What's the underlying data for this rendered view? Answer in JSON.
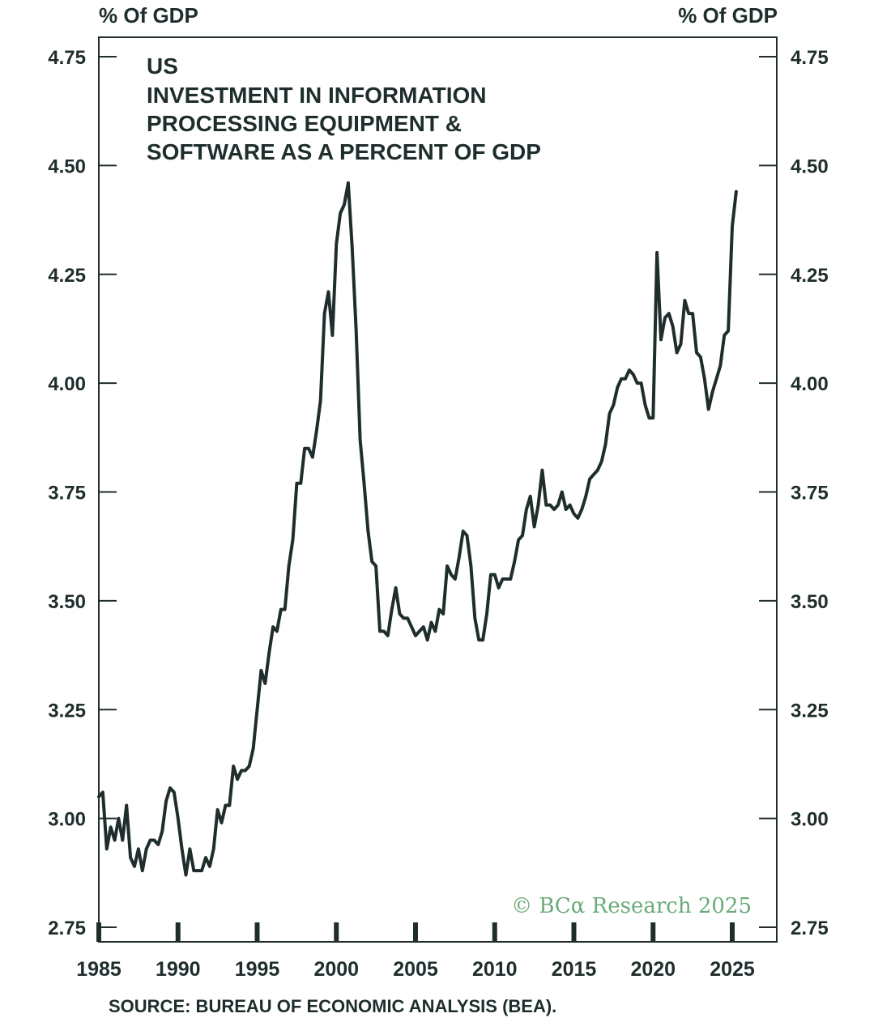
{
  "chart_data": {
    "type": "line",
    "title_lines": [
      "US",
      "INVESTMENT IN INFORMATION",
      "PROCESSING EQUIPMENT &",
      "SOFTWARE AS A PERCENT OF GDP"
    ],
    "ylabel_left": "% Of GDP",
    "ylabel_right": "% Of GDP",
    "source": "SOURCE: BUREAU OF ECONOMIC ANALYSIS (BEA).",
    "watermark": "© BCα Research 2025",
    "ylim": [
      2.75,
      4.75
    ],
    "xlim": [
      1985,
      2028
    ],
    "y_ticks": [
      2.75,
      3.0,
      3.25,
      3.5,
      3.75,
      4.0,
      4.25,
      4.5,
      4.75
    ],
    "y_tick_labels": [
      "2.75",
      "3.00",
      "3.25",
      "3.50",
      "3.75",
      "4.00",
      "4.25",
      "4.50",
      "4.75"
    ],
    "x_ticks": [
      1985,
      1990,
      1995,
      2000,
      2005,
      2010,
      2015,
      2020,
      2025
    ],
    "x_tick_labels": [
      "1985",
      "1990",
      "1995",
      "2000",
      "2005",
      "2010",
      "2015",
      "2020",
      "2025"
    ],
    "line_color": "#1f2d2d",
    "watermark_color": "#6aaa78",
    "grid": false,
    "series": [
      {
        "x": [
          1985.0,
          1985.25,
          1985.5,
          1985.75,
          1986.0,
          1986.25,
          1986.5,
          1986.75,
          1987.0,
          1987.25,
          1987.5,
          1987.75,
          1988.0,
          1988.25,
          1988.5,
          1988.75,
          1989.0,
          1989.25,
          1989.5,
          1989.75,
          1990.0,
          1990.25,
          1990.5,
          1990.75,
          1991.0,
          1991.25,
          1991.5,
          1991.75,
          1992.0,
          1992.25,
          1992.5,
          1992.75,
          1993.0,
          1993.25,
          1993.5,
          1993.75,
          1994.0,
          1994.25,
          1994.5,
          1994.75,
          1995.0,
          1995.25,
          1995.5,
          1995.75,
          1996.0,
          1996.25,
          1996.5,
          1996.75,
          1997.0,
          1997.25,
          1997.5,
          1997.75,
          1998.0,
          1998.25,
          1998.5,
          1998.75,
          1999.0,
          1999.25,
          1999.5,
          1999.75,
          2000.0,
          2000.25,
          2000.5,
          2000.75,
          2001.0,
          2001.25,
          2001.5,
          2001.75,
          2002.0,
          2002.25,
          2002.5,
          2002.75,
          2003.0,
          2003.25,
          2003.5,
          2003.75,
          2004.0,
          2004.25,
          2004.5,
          2004.75,
          2005.0,
          2005.25,
          2005.5,
          2005.75,
          2006.0,
          2006.25,
          2006.5,
          2006.75,
          2007.0,
          2007.25,
          2007.5,
          2007.75,
          2008.0,
          2008.25,
          2008.5,
          2008.75,
          2009.0,
          2009.25,
          2009.5,
          2009.75,
          2010.0,
          2010.25,
          2010.5,
          2010.75,
          2011.0,
          2011.25,
          2011.5,
          2011.75,
          2012.0,
          2012.25,
          2012.5,
          2012.75,
          2013.0,
          2013.25,
          2013.5,
          2013.75,
          2014.0,
          2014.25,
          2014.5,
          2014.75,
          2015.0,
          2015.25,
          2015.5,
          2015.75,
          2016.0,
          2016.25,
          2016.5,
          2016.75,
          2017.0,
          2017.25,
          2017.5,
          2017.75,
          2018.0,
          2018.25,
          2018.5,
          2018.75,
          2019.0,
          2019.25,
          2019.5,
          2019.75,
          2020.0,
          2020.25,
          2020.5,
          2020.75,
          2021.0,
          2021.25,
          2021.5,
          2021.75,
          2022.0,
          2022.25,
          2022.5,
          2022.75,
          2023.0,
          2023.25,
          2023.5,
          2023.75,
          2024.0,
          2024.25,
          2024.5,
          2024.75,
          2025.0,
          2025.25
        ],
        "values": [
          3.05,
          3.06,
          2.93,
          2.98,
          2.95,
          3.0,
          2.95,
          3.03,
          2.91,
          2.89,
          2.93,
          2.88,
          2.93,
          2.95,
          2.95,
          2.94,
          2.97,
          3.04,
          3.07,
          3.06,
          3.0,
          2.93,
          2.87,
          2.93,
          2.88,
          2.88,
          2.88,
          2.91,
          2.89,
          2.93,
          3.02,
          2.99,
          3.03,
          3.03,
          3.12,
          3.09,
          3.11,
          3.11,
          3.12,
          3.16,
          3.25,
          3.34,
          3.31,
          3.38,
          3.44,
          3.43,
          3.48,
          3.48,
          3.58,
          3.64,
          3.77,
          3.77,
          3.85,
          3.85,
          3.83,
          3.89,
          3.96,
          4.16,
          4.21,
          4.11,
          4.32,
          4.39,
          4.41,
          4.46,
          4.31,
          4.12,
          3.87,
          3.77,
          3.66,
          3.59,
          3.58,
          3.43,
          3.43,
          3.42,
          3.48,
          3.53,
          3.47,
          3.46,
          3.46,
          3.44,
          3.42,
          3.43,
          3.44,
          3.41,
          3.45,
          3.43,
          3.48,
          3.47,
          3.58,
          3.56,
          3.55,
          3.6,
          3.66,
          3.65,
          3.58,
          3.46,
          3.41,
          3.41,
          3.47,
          3.56,
          3.56,
          3.53,
          3.55,
          3.55,
          3.55,
          3.59,
          3.64,
          3.65,
          3.71,
          3.74,
          3.67,
          3.72,
          3.8,
          3.72,
          3.72,
          3.71,
          3.72,
          3.75,
          3.71,
          3.72,
          3.7,
          3.69,
          3.71,
          3.74,
          3.78,
          3.79,
          3.8,
          3.82,
          3.86,
          3.93,
          3.95,
          3.99,
          4.01,
          4.01,
          4.03,
          4.02,
          4.0,
          4.0,
          3.95,
          3.92,
          3.92,
          4.3,
          4.1,
          4.15,
          4.16,
          4.13,
          4.07,
          4.09,
          4.19,
          4.16,
          4.16,
          4.07,
          4.06,
          4.01,
          3.94,
          3.98,
          4.01,
          4.04,
          4.11,
          4.12,
          4.36,
          4.44
        ]
      }
    ]
  }
}
